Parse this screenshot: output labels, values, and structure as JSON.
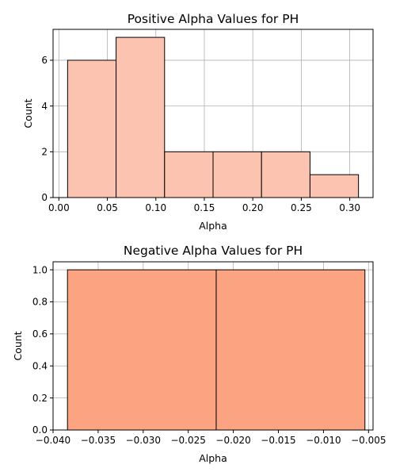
{
  "chart_data": [
    {
      "type": "bar",
      "title": "Positive Alpha Values for PH",
      "xlabel": "Alpha",
      "ylabel": "Count",
      "bin_edges": [
        0.009,
        0.059,
        0.109,
        0.159,
        0.209,
        0.259,
        0.309
      ],
      "values": [
        6,
        7,
        2,
        2,
        2,
        1
      ],
      "xlim": [
        -0.006,
        0.324
      ],
      "ylim": [
        0,
        7.35
      ],
      "xticks": [
        0.0,
        0.05,
        0.1,
        0.15,
        0.2,
        0.25,
        0.3
      ],
      "xtick_labels": [
        "0.00",
        "0.05",
        "0.10",
        "0.15",
        "0.20",
        "0.25",
        "0.30"
      ],
      "yticks": [
        0,
        2,
        4,
        6
      ],
      "ytick_labels": [
        "0",
        "2",
        "4",
        "6"
      ],
      "grid": true,
      "color": "#fcc4b0"
    },
    {
      "type": "bar",
      "title": "Negative Alpha Values for PH",
      "xlabel": "Alpha",
      "ylabel": "Count",
      "bin_edges": [
        -0.0384,
        -0.0219,
        -0.0054
      ],
      "values": [
        1,
        1
      ],
      "xlim": [
        -0.04,
        -0.0045
      ],
      "ylim": [
        0,
        1.05
      ],
      "xticks": [
        -0.04,
        -0.035,
        -0.03,
        -0.025,
        -0.02,
        -0.015,
        -0.01,
        -0.005
      ],
      "xtick_labels": [
        "−0.040",
        "−0.035",
        "−0.030",
        "−0.025",
        "−0.020",
        "−0.015",
        "−0.010",
        "−0.005"
      ],
      "yticks": [
        0.0,
        0.2,
        0.4,
        0.6,
        0.8,
        1.0
      ],
      "ytick_labels": [
        "0.0",
        "0.2",
        "0.4",
        "0.6",
        "0.8",
        "1.0"
      ],
      "grid": true,
      "color": "#fca481"
    }
  ]
}
